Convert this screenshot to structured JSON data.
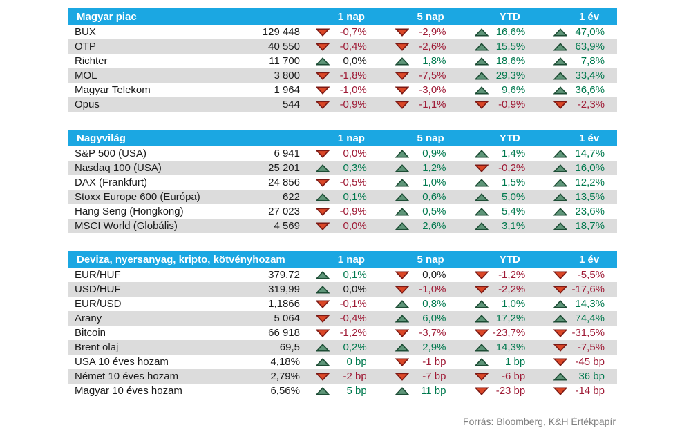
{
  "colors": {
    "header_bg": "#1ba7e2",
    "header_text": "#ffffff",
    "stripe": "#dcdcdc",
    "positive": "#00794e",
    "negative": "#9f1b36",
    "neutral": "#1a1a1a",
    "arrow_up_fill": "#5f9679",
    "arrow_up_border": "#1d4d35",
    "arrow_down_fill": "#db4727",
    "arrow_down_border": "#7c1a15",
    "source_text": "#7f7f7f"
  },
  "chart_data": [
    {
      "type": "table",
      "title": "Magyar piac",
      "columns": [
        "1 nap",
        "5 nap",
        "YTD",
        "1 év"
      ],
      "rows": [
        {
          "name": "BUX",
          "value": "129 448",
          "cells": [
            {
              "dir": "down",
              "text": "-0,7%",
              "tone": "neg"
            },
            {
              "dir": "down",
              "text": "-2,9%",
              "tone": "neg"
            },
            {
              "dir": "up",
              "text": "16,6%",
              "tone": "pos"
            },
            {
              "dir": "up",
              "text": "47,0%",
              "tone": "pos"
            }
          ]
        },
        {
          "name": "OTP",
          "value": "40 550",
          "cells": [
            {
              "dir": "down",
              "text": "-0,4%",
              "tone": "neg"
            },
            {
              "dir": "down",
              "text": "-2,6%",
              "tone": "neg"
            },
            {
              "dir": "up",
              "text": "15,5%",
              "tone": "pos"
            },
            {
              "dir": "up",
              "text": "63,9%",
              "tone": "pos"
            }
          ]
        },
        {
          "name": "Richter",
          "value": "11 700",
          "cells": [
            {
              "dir": "up",
              "text": "0,0%",
              "tone": "neu"
            },
            {
              "dir": "up",
              "text": "1,8%",
              "tone": "pos"
            },
            {
              "dir": "up",
              "text": "18,6%",
              "tone": "pos"
            },
            {
              "dir": "up",
              "text": "7,8%",
              "tone": "pos"
            }
          ]
        },
        {
          "name": "MOL",
          "value": "3 800",
          "cells": [
            {
              "dir": "down",
              "text": "-1,8%",
              "tone": "neg"
            },
            {
              "dir": "down",
              "text": "-7,5%",
              "tone": "neg"
            },
            {
              "dir": "up",
              "text": "29,3%",
              "tone": "pos"
            },
            {
              "dir": "up",
              "text": "33,4%",
              "tone": "pos"
            }
          ]
        },
        {
          "name": "Magyar Telekom",
          "value": "1 964",
          "cells": [
            {
              "dir": "down",
              "text": "-1,0%",
              "tone": "neg"
            },
            {
              "dir": "down",
              "text": "-3,0%",
              "tone": "neg"
            },
            {
              "dir": "up",
              "text": "9,6%",
              "tone": "pos"
            },
            {
              "dir": "up",
              "text": "36,6%",
              "tone": "pos"
            }
          ]
        },
        {
          "name": "Opus",
          "value": "544",
          "cells": [
            {
              "dir": "down",
              "text": "-0,9%",
              "tone": "neg"
            },
            {
              "dir": "down",
              "text": "-1,1%",
              "tone": "neg"
            },
            {
              "dir": "down",
              "text": "-0,9%",
              "tone": "neg"
            },
            {
              "dir": "down",
              "text": "-2,3%",
              "tone": "neg"
            }
          ]
        }
      ]
    },
    {
      "type": "table",
      "title": "Nagyvilág",
      "columns": [
        "1 nap",
        "5 nap",
        "YTD",
        "1 év"
      ],
      "rows": [
        {
          "name": "S&P 500 (USA)",
          "value": "6 941",
          "cells": [
            {
              "dir": "down",
              "text": "0,0%",
              "tone": "neg"
            },
            {
              "dir": "up",
              "text": "0,9%",
              "tone": "pos"
            },
            {
              "dir": "up",
              "text": "1,4%",
              "tone": "pos"
            },
            {
              "dir": "up",
              "text": "14,7%",
              "tone": "pos"
            }
          ]
        },
        {
          "name": "Nasdaq 100 (USA)",
          "value": "25 201",
          "cells": [
            {
              "dir": "up",
              "text": "0,3%",
              "tone": "pos"
            },
            {
              "dir": "up",
              "text": "1,2%",
              "tone": "pos"
            },
            {
              "dir": "down",
              "text": "-0,2%",
              "tone": "neg"
            },
            {
              "dir": "up",
              "text": "16,0%",
              "tone": "pos"
            }
          ]
        },
        {
          "name": "DAX (Frankfurt)",
          "value": "24 856",
          "cells": [
            {
              "dir": "down",
              "text": "-0,5%",
              "tone": "neg"
            },
            {
              "dir": "up",
              "text": "1,0%",
              "tone": "pos"
            },
            {
              "dir": "up",
              "text": "1,5%",
              "tone": "pos"
            },
            {
              "dir": "up",
              "text": "12,2%",
              "tone": "pos"
            }
          ]
        },
        {
          "name": "Stoxx Europe 600 (Európa)",
          "value": "622",
          "cells": [
            {
              "dir": "up",
              "text": "0,1%",
              "tone": "pos"
            },
            {
              "dir": "up",
              "text": "0,6%",
              "tone": "pos"
            },
            {
              "dir": "up",
              "text": "5,0%",
              "tone": "pos"
            },
            {
              "dir": "up",
              "text": "13,5%",
              "tone": "pos"
            }
          ]
        },
        {
          "name": "Hang Seng (Hongkong)",
          "value": "27 023",
          "cells": [
            {
              "dir": "down",
              "text": "-0,9%",
              "tone": "neg"
            },
            {
              "dir": "up",
              "text": "0,5%",
              "tone": "pos"
            },
            {
              "dir": "up",
              "text": "5,4%",
              "tone": "pos"
            },
            {
              "dir": "up",
              "text": "23,6%",
              "tone": "pos"
            }
          ]
        },
        {
          "name": "MSCI World (Globális)",
          "value": "4 569",
          "cells": [
            {
              "dir": "down",
              "text": "0,0%",
              "tone": "neg"
            },
            {
              "dir": "up",
              "text": "2,6%",
              "tone": "pos"
            },
            {
              "dir": "up",
              "text": "3,1%",
              "tone": "pos"
            },
            {
              "dir": "up",
              "text": "18,7%",
              "tone": "pos"
            }
          ]
        }
      ]
    },
    {
      "type": "table",
      "title": "Deviza, nyersanyag, kripto, kötvényhozam",
      "columns": [
        "1 nap",
        "5 nap",
        "YTD",
        "1 év"
      ],
      "rows": [
        {
          "name": "EUR/HUF",
          "value": "379,72",
          "cells": [
            {
              "dir": "up",
              "text": "0,1%",
              "tone": "pos"
            },
            {
              "dir": "down",
              "text": "0,0%",
              "tone": "neu"
            },
            {
              "dir": "down",
              "text": "-1,2%",
              "tone": "neg"
            },
            {
              "dir": "down",
              "text": "-5,5%",
              "tone": "neg"
            }
          ]
        },
        {
          "name": "USD/HUF",
          "value": "319,99",
          "cells": [
            {
              "dir": "up",
              "text": "0,0%",
              "tone": "neu"
            },
            {
              "dir": "down",
              "text": "-1,0%",
              "tone": "neg"
            },
            {
              "dir": "down",
              "text": "-2,2%",
              "tone": "neg"
            },
            {
              "dir": "down",
              "text": "-17,6%",
              "tone": "neg"
            }
          ]
        },
        {
          "name": "EUR/USD",
          "value": "1,1866",
          "cells": [
            {
              "dir": "down",
              "text": "-0,1%",
              "tone": "neg"
            },
            {
              "dir": "up",
              "text": "0,8%",
              "tone": "pos"
            },
            {
              "dir": "up",
              "text": "1,0%",
              "tone": "pos"
            },
            {
              "dir": "up",
              "text": "14,3%",
              "tone": "pos"
            }
          ]
        },
        {
          "name": "Arany",
          "value": "5 064",
          "cells": [
            {
              "dir": "down",
              "text": "-0,4%",
              "tone": "neg"
            },
            {
              "dir": "up",
              "text": "6,0%",
              "tone": "pos"
            },
            {
              "dir": "up",
              "text": "17,2%",
              "tone": "pos"
            },
            {
              "dir": "up",
              "text": "74,4%",
              "tone": "pos"
            }
          ]
        },
        {
          "name": "Bitcoin",
          "value": "66 918",
          "cells": [
            {
              "dir": "down",
              "text": "-1,2%",
              "tone": "neg"
            },
            {
              "dir": "down",
              "text": "-3,7%",
              "tone": "neg"
            },
            {
              "dir": "down",
              "text": "-23,7%",
              "tone": "neg"
            },
            {
              "dir": "down",
              "text": "-31,5%",
              "tone": "neg"
            }
          ]
        },
        {
          "name": "Brent olaj",
          "value": "69,5",
          "cells": [
            {
              "dir": "up",
              "text": "0,2%",
              "tone": "pos"
            },
            {
              "dir": "up",
              "text": "2,9%",
              "tone": "pos"
            },
            {
              "dir": "up",
              "text": "14,3%",
              "tone": "pos"
            },
            {
              "dir": "down",
              "text": "-7,5%",
              "tone": "neg"
            }
          ]
        },
        {
          "name": "USA 10 éves hozam",
          "value": "4,18%",
          "cells": [
            {
              "dir": "up",
              "text": "0 bp",
              "tone": "pos"
            },
            {
              "dir": "down",
              "text": "-1 bp",
              "tone": "neg"
            },
            {
              "dir": "up",
              "text": "1 bp",
              "tone": "pos"
            },
            {
              "dir": "down",
              "text": "-45 bp",
              "tone": "neg"
            }
          ]
        },
        {
          "name": "Német 10 éves hozam",
          "value": "2,79%",
          "cells": [
            {
              "dir": "down",
              "text": "-2 bp",
              "tone": "neg"
            },
            {
              "dir": "down",
              "text": "-7 bp",
              "tone": "neg"
            },
            {
              "dir": "down",
              "text": "-6 bp",
              "tone": "neg"
            },
            {
              "dir": "up",
              "text": "36 bp",
              "tone": "pos"
            }
          ]
        },
        {
          "name": "Magyar 10 éves hozam",
          "value": "6,56%",
          "cells": [
            {
              "dir": "up",
              "text": "5 bp",
              "tone": "pos"
            },
            {
              "dir": "up",
              "text": "11 bp",
              "tone": "pos"
            },
            {
              "dir": "down",
              "text": "-23 bp",
              "tone": "neg"
            },
            {
              "dir": "down",
              "text": "-14 bp",
              "tone": "neg"
            }
          ]
        }
      ]
    }
  ],
  "footer": {
    "source": "Forrás: Bloomberg, K&H Értékpapír"
  }
}
